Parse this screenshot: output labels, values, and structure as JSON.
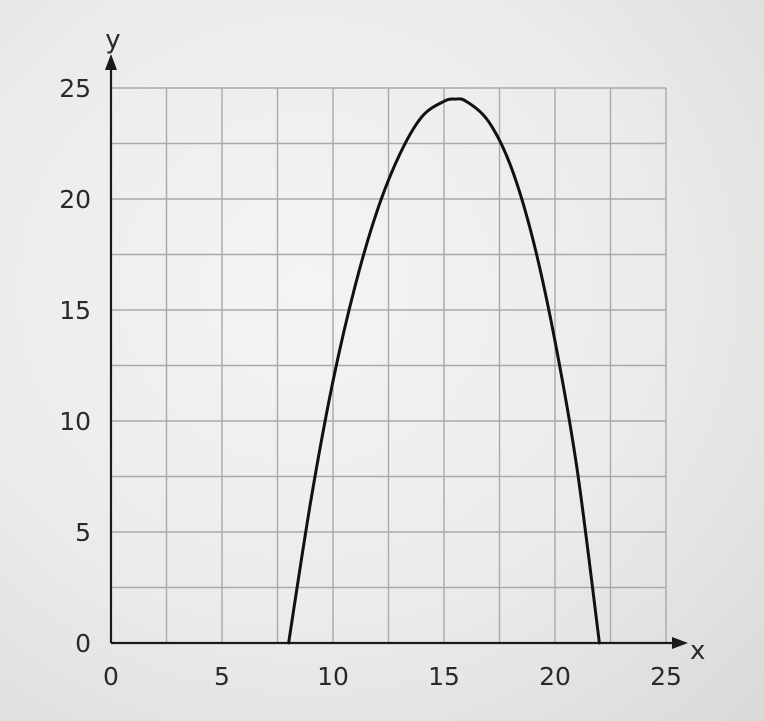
{
  "chart_data": {
    "type": "line",
    "xlabel": "x",
    "ylabel": "y",
    "xlim": [
      0,
      25
    ],
    "ylim": [
      0,
      25
    ],
    "x_ticks": [
      0,
      5,
      10,
      15,
      20,
      25
    ],
    "y_ticks": [
      0,
      5,
      10,
      15,
      20,
      25
    ],
    "minor_grid_step": 2.5,
    "grid": true,
    "series": [
      {
        "x": [
          8,
          9,
          10,
          11,
          12,
          13,
          14,
          15,
          15.5,
          16,
          17,
          18,
          19,
          20,
          21,
          22
        ],
        "y": [
          0,
          6.4,
          11.8,
          16.1,
          19.5,
          22.0,
          23.7,
          24.4,
          24.5,
          24.4,
          23.5,
          21.5,
          18.2,
          13.6,
          7.8,
          0
        ],
        "color": "#111111"
      }
    ]
  }
}
